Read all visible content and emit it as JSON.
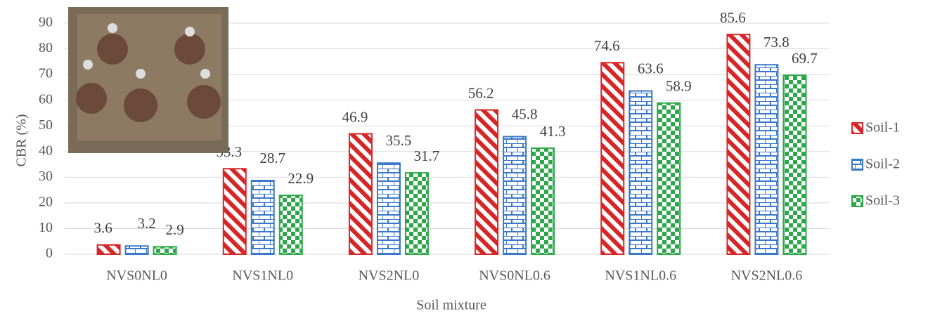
{
  "chart_data": {
    "type": "bar",
    "x_label": "Soil mixture",
    "y_label": "CBR (%)",
    "categories": [
      "NVS0NL0",
      "NVS1NL0",
      "NVS2NL0",
      "NVS0NL0.6",
      "NVS1NL0.6",
      "NVS2NL0.6"
    ],
    "series": [
      {
        "name": "Soil-1",
        "color": "#d62728",
        "values": [
          3.6,
          33.3,
          46.9,
          56.2,
          74.6,
          85.6
        ]
      },
      {
        "name": "Soil-2",
        "color": "#3a78c9",
        "values": [
          3.2,
          28.7,
          35.5,
          45.8,
          63.6,
          73.8
        ]
      },
      {
        "name": "Soil-3",
        "color": "#2ca84a",
        "values": [
          2.9,
          22.9,
          31.7,
          41.3,
          58.9,
          69.7
        ]
      }
    ],
    "ylim": [
      0,
      90
    ],
    "yticks": [
      0,
      10,
      20,
      30,
      40,
      50,
      60,
      70,
      80,
      90
    ],
    "grid": true,
    "legend": "right"
  }
}
